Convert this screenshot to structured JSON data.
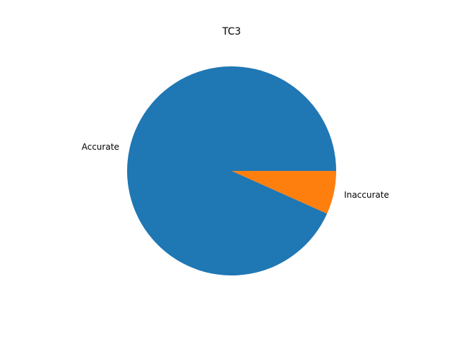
{
  "chart_data": {
    "type": "pie",
    "title": "TC3",
    "labels": [
      "Accurate",
      "Inaccurate"
    ],
    "values": [
      93.3,
      6.7
    ],
    "colors": [
      "#1f77b4",
      "#ff7f0e"
    ],
    "start_angle_deg": 0,
    "direction": "counterclockwise",
    "legend": "none"
  }
}
